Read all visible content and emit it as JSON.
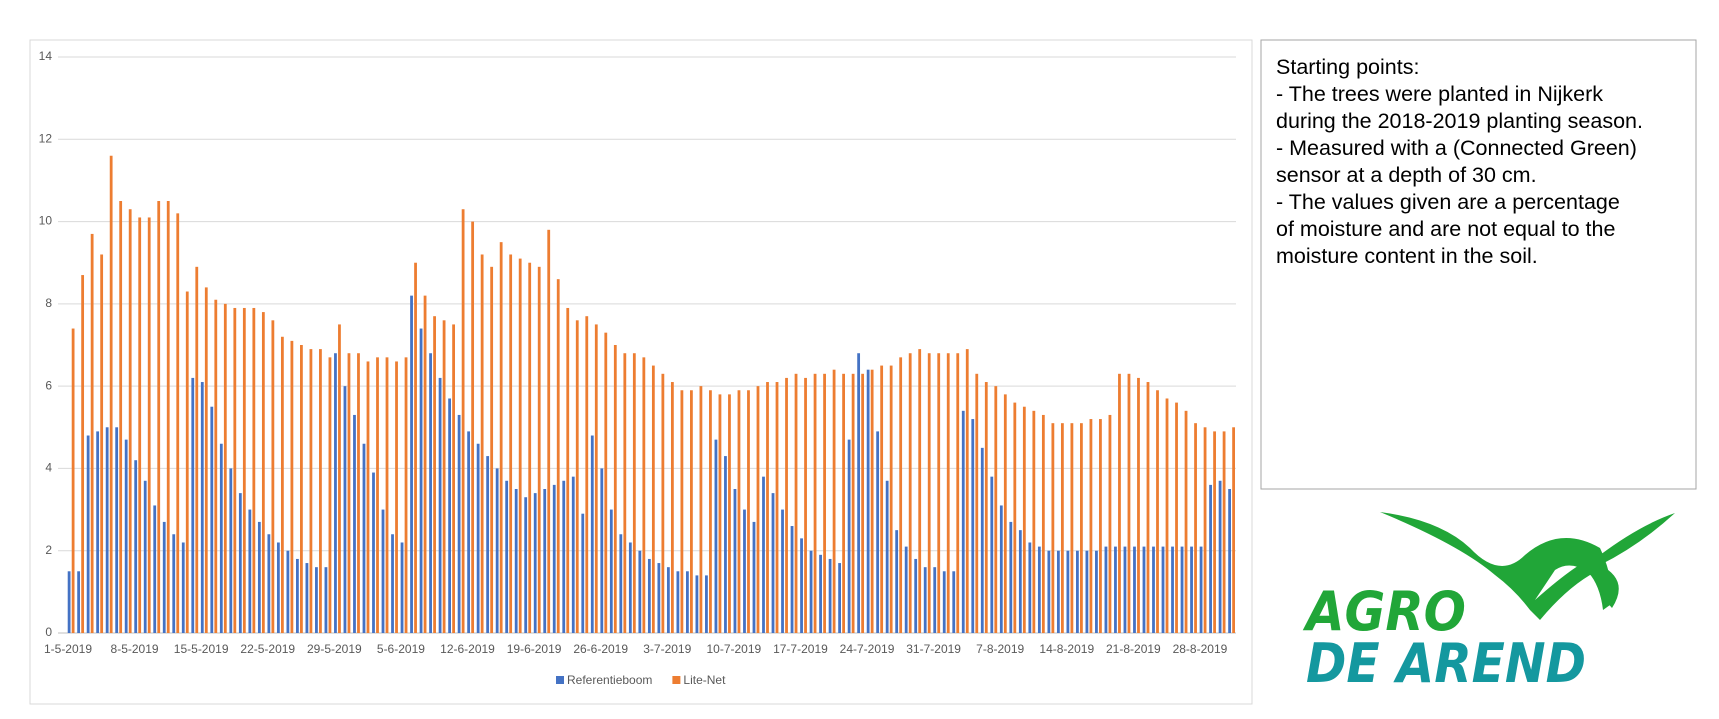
{
  "chart_data": {
    "type": "bar",
    "categories": [
      "1-5-2019",
      null,
      null,
      null,
      null,
      null,
      null,
      "8-5-2019",
      null,
      null,
      null,
      null,
      null,
      null,
      "15-5-2019",
      null,
      null,
      null,
      null,
      null,
      null,
      "22-5-2019",
      null,
      null,
      null,
      null,
      null,
      null,
      "29-5-2019",
      null,
      null,
      null,
      null,
      null,
      null,
      "5-6-2019",
      null,
      null,
      null,
      null,
      null,
      null,
      "12-6-2019",
      null,
      null,
      null,
      null,
      null,
      null,
      "19-6-2019",
      null,
      null,
      null,
      null,
      null,
      null,
      "26-6-2019",
      null,
      null,
      null,
      null,
      null,
      null,
      "3-7-2019",
      null,
      null,
      null,
      null,
      null,
      null,
      "10-7-2019",
      null,
      null,
      null,
      null,
      null,
      null,
      "17-7-2019",
      null,
      null,
      null,
      null,
      null,
      null,
      "24-7-2019",
      null,
      null,
      null,
      null,
      null,
      null,
      "31-7-2019",
      null,
      null,
      null,
      null,
      null,
      null,
      "7-8-2019",
      null,
      null,
      null,
      null,
      null,
      null,
      "14-8-2019",
      null,
      null,
      null,
      null,
      null,
      null,
      "21-8-2019",
      null,
      null,
      null,
      null,
      null,
      null,
      "28-8-2019",
      null,
      null,
      null
    ],
    "series": [
      {
        "name": "Referentieboom",
        "color": "#4472c4",
        "values": [
          1.5,
          1.5,
          4.8,
          4.9,
          5.0,
          5.0,
          4.7,
          4.2,
          3.7,
          3.1,
          2.7,
          2.4,
          2.2,
          6.2,
          6.1,
          5.5,
          4.6,
          4.0,
          3.4,
          3.0,
          2.7,
          2.4,
          2.2,
          2.0,
          1.8,
          1.7,
          1.6,
          1.6,
          6.8,
          6.0,
          5.3,
          4.6,
          3.9,
          3.0,
          2.4,
          2.2,
          8.2,
          7.4,
          6.8,
          6.2,
          5.7,
          5.3,
          4.9,
          4.6,
          4.3,
          4.0,
          3.7,
          3.5,
          3.3,
          3.4,
          3.5,
          3.6,
          3.7,
          3.8,
          2.9,
          4.8,
          4.0,
          3.0,
          2.4,
          2.2,
          2.0,
          1.8,
          1.7,
          1.6,
          1.5,
          1.5,
          1.4,
          1.4,
          4.7,
          4.3,
          3.5,
          3.0,
          2.7,
          3.8,
          3.4,
          3.0,
          2.6,
          2.3,
          2.0,
          1.9,
          1.8,
          1.7,
          4.7,
          6.8,
          6.4,
          4.9,
          3.7,
          2.5,
          2.1,
          1.8,
          1.6,
          1.6,
          1.5,
          1.5,
          5.4,
          5.2,
          4.5,
          3.8,
          3.1,
          2.7,
          2.5,
          2.2,
          2.1,
          2.0,
          2.0,
          2.0,
          2.0,
          2.0,
          2.0,
          2.1,
          2.1,
          2.1,
          2.1,
          2.1,
          2.1,
          2.1,
          2.1,
          2.1,
          2.1,
          2.1,
          3.6,
          3.7,
          3.5
        ]
      },
      {
        "name": "Lite-Net",
        "color": "#ed7d31",
        "values": [
          7.4,
          8.7,
          9.7,
          9.2,
          11.6,
          10.5,
          10.3,
          10.1,
          10.1,
          10.5,
          10.5,
          10.2,
          8.3,
          8.9,
          8.4,
          8.1,
          8.0,
          7.9,
          7.9,
          7.9,
          7.8,
          7.6,
          7.2,
          7.1,
          7.0,
          6.9,
          6.9,
          6.7,
          7.5,
          6.8,
          6.8,
          6.6,
          6.7,
          6.7,
          6.6,
          6.7,
          9.0,
          8.2,
          7.7,
          7.6,
          7.5,
          10.3,
          10.0,
          9.2,
          8.9,
          9.5,
          9.2,
          9.1,
          9.0,
          8.9,
          9.8,
          8.6,
          7.9,
          7.6,
          7.7,
          7.5,
          7.3,
          7.0,
          6.8,
          6.8,
          6.7,
          6.5,
          6.3,
          6.1,
          5.9,
          5.9,
          6.0,
          5.9,
          5.8,
          5.8,
          5.9,
          5.9,
          6.0,
          6.1,
          6.1,
          6.2,
          6.3,
          6.2,
          6.3,
          6.3,
          6.4,
          6.3,
          6.3,
          6.3,
          6.4,
          6.5,
          6.5,
          6.7,
          6.8,
          6.9,
          6.8,
          6.8,
          6.8,
          6.8,
          6.9,
          6.3,
          6.1,
          6.0,
          5.8,
          5.6,
          5.5,
          5.4,
          5.3,
          5.1,
          5.1,
          5.1,
          5.1,
          5.2,
          5.2,
          5.3,
          6.3,
          6.3,
          6.2,
          6.1,
          5.9,
          5.7,
          5.6,
          5.4,
          5.1,
          5.0,
          4.9,
          4.9,
          5.0
        ]
      }
    ],
    "ylim": [
      0,
      14
    ],
    "yticks": [
      0,
      2,
      4,
      6,
      8,
      10,
      12,
      14
    ],
    "grid": true,
    "legend": "bottom"
  },
  "notes": {
    "title": "Starting points:",
    "lines": [
      "- The trees were planted in Nijkerk",
      "during the 2018-2019 planting season.",
      "- Measured with a (Connected Green)",
      "sensor at a depth of 30 cm.",
      "- The values given are a percentage",
      "of moisture and are not equal to the",
      "moisture content in the soil."
    ]
  },
  "logo": {
    "line1": "AGRO",
    "line2": "DE AREND"
  }
}
